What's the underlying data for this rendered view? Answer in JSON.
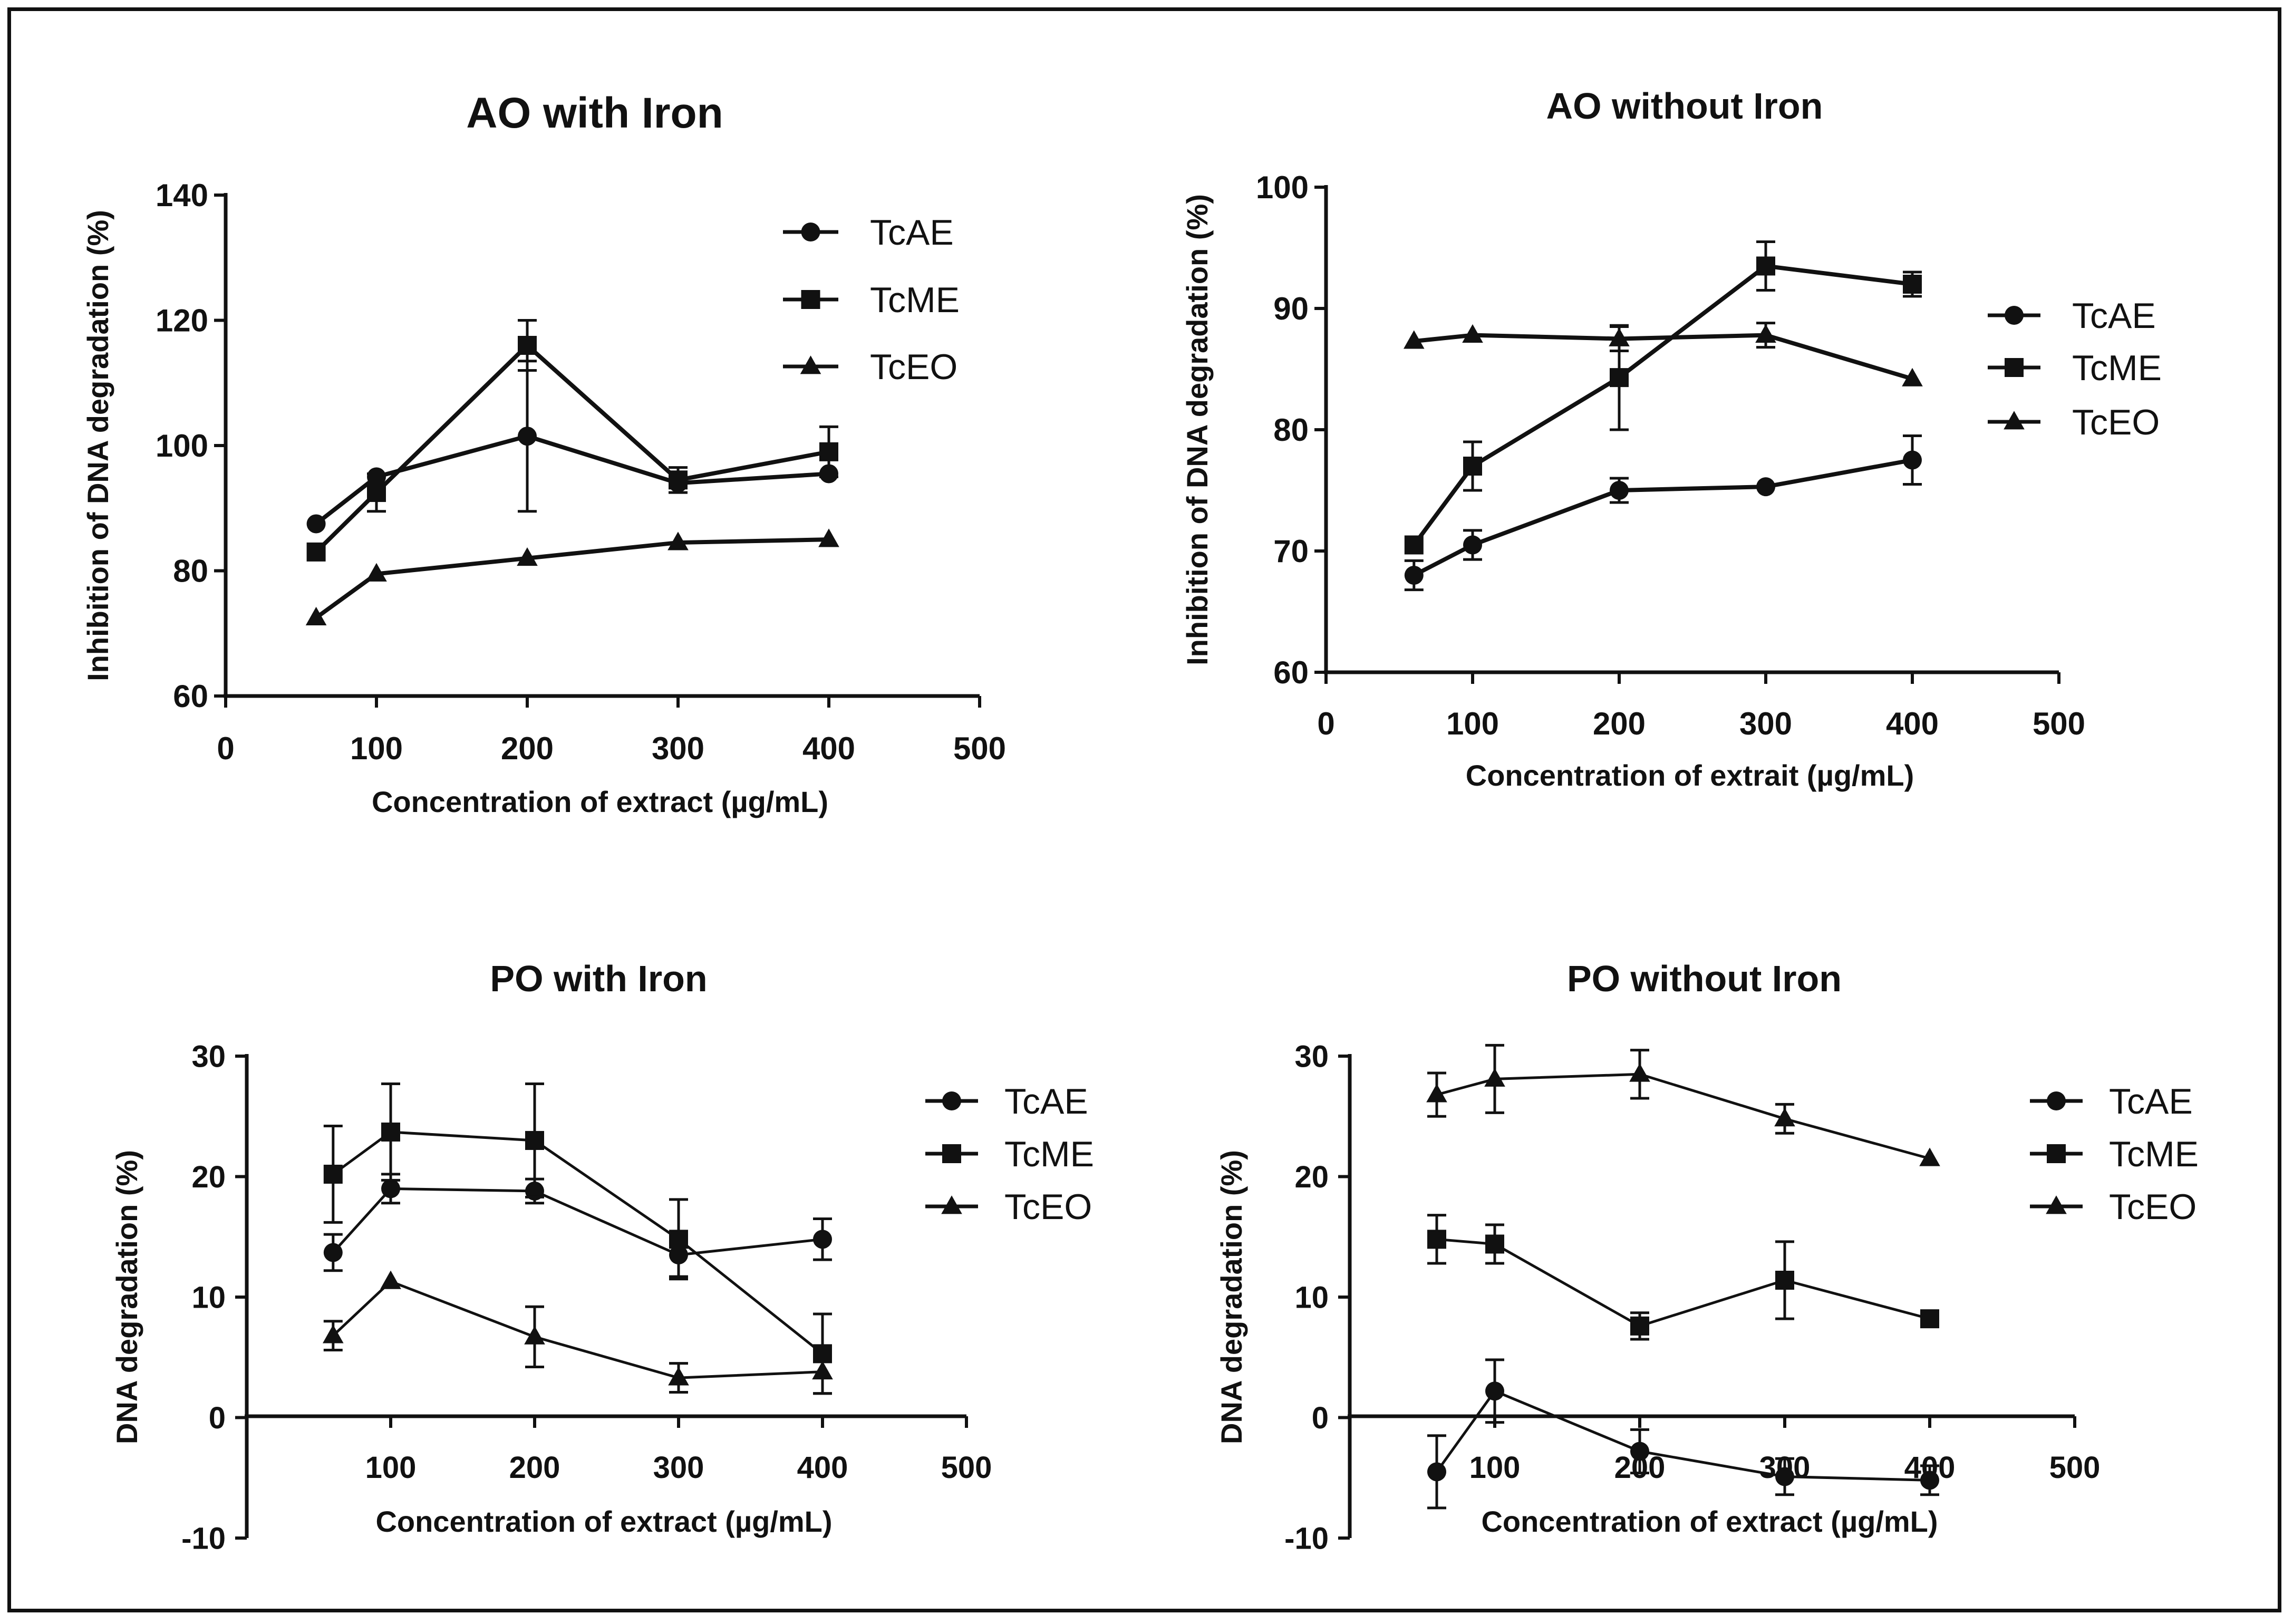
{
  "figure": {
    "border_color": "#111111",
    "line_color": "#111111",
    "background": "#ffffff"
  },
  "chart_data": [
    {
      "type": "line",
      "title": "AO with Iron",
      "xlabel": "Concentration of extract (µg/mL)",
      "ylabel": "Inhibition of DNA degradation (%)",
      "xlim": [
        0,
        500
      ],
      "ylim": [
        60,
        140
      ],
      "xticks": [
        "0",
        "100",
        "200",
        "300",
        "400",
        "500"
      ],
      "yticks": [
        "60",
        "80",
        "100",
        "120",
        "140"
      ],
      "legend": [
        "TcAE",
        "TcME",
        "TcEO"
      ],
      "legend_position": "top-right",
      "x": [
        60,
        100,
        200,
        300,
        400
      ],
      "series": [
        {
          "name": "TcAE",
          "marker": "circle",
          "values": [
            87.5,
            95,
            101.5,
            94,
            95.5
          ],
          "errors": [
            0,
            0,
            12,
            0,
            0
          ]
        },
        {
          "name": "TcME",
          "marker": "square",
          "values": [
            83,
            92.5,
            116,
            94.5,
            99
          ],
          "errors": [
            0,
            3,
            4,
            2,
            4
          ]
        },
        {
          "name": "TcEO",
          "marker": "triangle",
          "values": [
            72.5,
            79.5,
            82,
            84.5,
            85
          ],
          "errors": [
            0,
            0,
            0,
            0,
            0
          ]
        }
      ]
    },
    {
      "type": "line",
      "title": "AO without Iron",
      "xlabel": "Concentration of extrait (µg/mL)",
      "ylabel": "Inhibition of DNA degradation (%)",
      "xlim": [
        0,
        500
      ],
      "ylim": [
        60,
        100
      ],
      "xticks": [
        "0",
        "100",
        "200",
        "300",
        "400",
        "500"
      ],
      "yticks": [
        "60",
        "70",
        "80",
        "90",
        "100"
      ],
      "legend": [
        "TcAE",
        "TcME",
        "TcEO"
      ],
      "legend_position": "right",
      "x": [
        60,
        100,
        200,
        300,
        400
      ],
      "series": [
        {
          "name": "TcAE",
          "marker": "circle",
          "values": [
            68,
            70.5,
            75,
            75.3,
            77.5
          ],
          "errors": [
            1.2,
            1.2,
            1,
            0,
            2
          ]
        },
        {
          "name": "TcME",
          "marker": "square",
          "values": [
            70.5,
            77,
            84.3,
            93.5,
            92
          ],
          "errors": [
            0,
            2,
            4.3,
            2,
            1
          ]
        },
        {
          "name": "TcEO",
          "marker": "triangle",
          "values": [
            87.3,
            87.8,
            87.5,
            87.8,
            84.2
          ],
          "errors": [
            0,
            0,
            1,
            1,
            0
          ]
        }
      ]
    },
    {
      "type": "line",
      "title": "PO with Iron",
      "xlabel": "Concentration of extract (µg/mL)",
      "ylabel": "DNA degradation (%)",
      "xlim": [
        0,
        500
      ],
      "ylim": [
        -10,
        30
      ],
      "xticks": [
        "100",
        "200",
        "300",
        "400",
        "500"
      ],
      "yticks": [
        "-10",
        "0",
        "10",
        "20",
        "30"
      ],
      "legend": [
        "TcAE",
        "TcME",
        "TcEO"
      ],
      "legend_position": "right",
      "x": [
        60,
        100,
        200,
        300,
        400
      ],
      "series": [
        {
          "name": "TcAE",
          "marker": "circle",
          "values": [
            13.7,
            19,
            18.8,
            13.5,
            14.8
          ],
          "errors": [
            1.5,
            1.2,
            1,
            1.8,
            1.7
          ]
        },
        {
          "name": "TcME",
          "marker": "square",
          "values": [
            20.2,
            23.7,
            23,
            14.8,
            5.3
          ],
          "errors": [
            4,
            4,
            4.7,
            3.3,
            3.3
          ]
        },
        {
          "name": "TcEO",
          "marker": "triangle",
          "values": [
            6.8,
            11.3,
            6.7,
            3.3,
            3.8
          ],
          "errors": [
            1.2,
            0,
            2.5,
            1.2,
            1.8
          ]
        }
      ]
    },
    {
      "type": "line",
      "title": "PO without Iron",
      "xlabel": "Concentration of extract (µg/mL)",
      "ylabel": "DNA degradation (%)",
      "xlim": [
        0,
        500
      ],
      "ylim": [
        -10,
        30
      ],
      "xticks": [
        "100",
        "200",
        "300",
        "400",
        "500"
      ],
      "yticks": [
        "-10",
        "0",
        "10",
        "20",
        "30"
      ],
      "legend": [
        "TcAE",
        "TcME",
        "TcEO"
      ],
      "legend_position": "right",
      "x": [
        60,
        100,
        200,
        300,
        400
      ],
      "series": [
        {
          "name": "TcAE",
          "marker": "circle",
          "values": [
            -4.5,
            2.2,
            -2.8,
            -4.9,
            -5.2
          ],
          "errors": [
            3,
            2.6,
            1.8,
            1.5,
            1.2
          ]
        },
        {
          "name": "TcME",
          "marker": "square",
          "values": [
            14.8,
            14.4,
            7.6,
            11.4,
            8.2
          ],
          "errors": [
            2,
            1.6,
            1.1,
            3.2,
            0
          ]
        },
        {
          "name": "TcEO",
          "marker": "triangle",
          "values": [
            26.8,
            28.1,
            28.5,
            24.8,
            21.5
          ],
          "errors": [
            1.8,
            2.8,
            2,
            1.2,
            0
          ]
        }
      ]
    }
  ]
}
